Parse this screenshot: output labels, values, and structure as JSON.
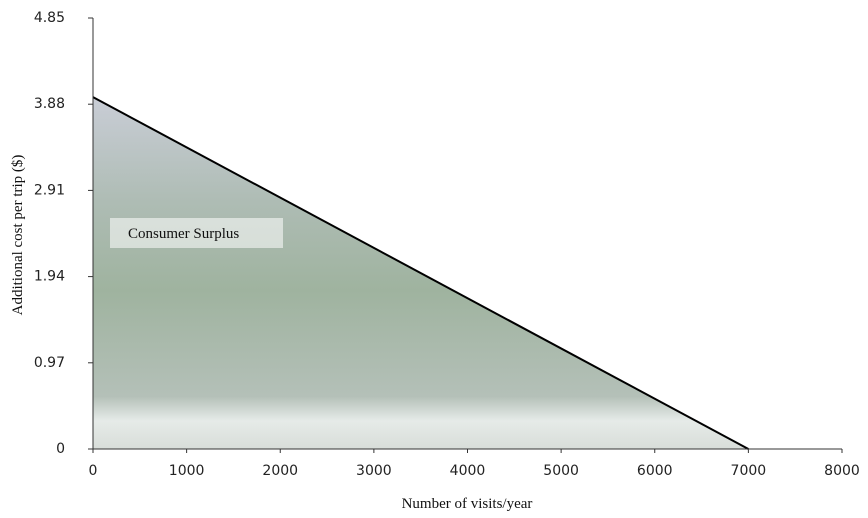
{
  "chart_data": {
    "type": "area",
    "x": [
      0,
      7000
    ],
    "values": [
      3.96,
      0
    ],
    "xlim": [
      0,
      8000
    ],
    "ylim": [
      0,
      4.85
    ],
    "xticks": [
      0,
      1000,
      2000,
      3000,
      4000,
      5000,
      6000,
      7000,
      8000
    ],
    "yticks": [
      0,
      0.97,
      1.94,
      2.91,
      3.88,
      4.85
    ],
    "x_label": "Number of visits/year",
    "y_label": "Additional cost per trip ($)",
    "annotation": "Consumer Surplus",
    "color": "#000000"
  }
}
